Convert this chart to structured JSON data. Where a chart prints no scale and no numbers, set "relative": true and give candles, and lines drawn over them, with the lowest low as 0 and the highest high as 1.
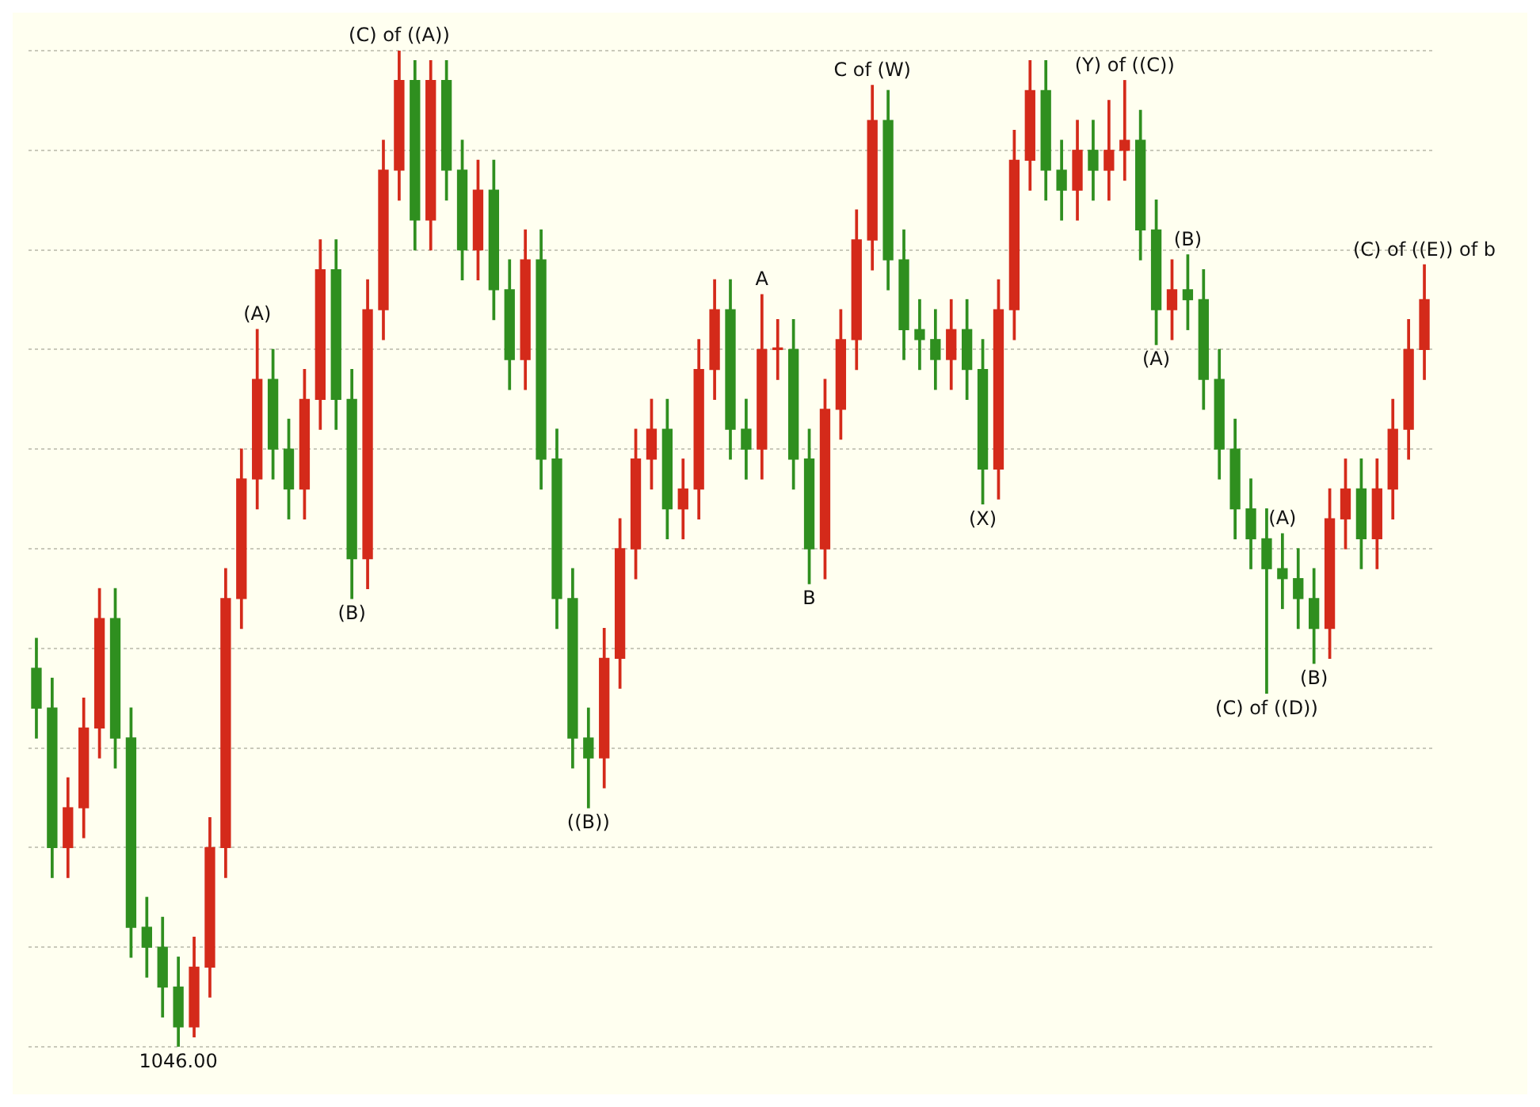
{
  "chart_data": {
    "type": "candlestick",
    "relative": true,
    "grid": "y",
    "colors": [
      "#2f8f1f",
      "#2f8f1f",
      "#d42a1a",
      "#d42a1a",
      "#d42a1a",
      "#2f8f1f",
      "#2f8f1f",
      "#2f8f1f",
      "#2f8f1f",
      "#2f8f1f",
      "#d42a1a",
      "#d42a1a",
      "#d42a1a",
      "#d42a1a",
      "#d42a1a",
      "#2f8f1f",
      "#2f8f1f",
      "#d42a1a",
      "#d42a1a",
      "#2f8f1f",
      "#2f8f1f",
      "#d42a1a",
      "#d42a1a",
      "#d42a1a",
      "#2f8f1f",
      "#d42a1a",
      "#2f8f1f",
      "#2f8f1f",
      "#d42a1a",
      "#2f8f1f",
      "#2f8f1f",
      "#d42a1a",
      "#2f8f1f",
      "#2f8f1f",
      "#2f8f1f",
      "#2f8f1f",
      "#d42a1a",
      "#d42a1a",
      "#d42a1a",
      "#d42a1a",
      "#2f8f1f",
      "#d42a1a",
      "#d42a1a",
      "#d42a1a",
      "#2f8f1f",
      "#2f8f1f",
      "#d42a1a",
      "#d42a1a",
      "#2f8f1f",
      "#2f8f1f",
      "#d42a1a",
      "#d42a1a",
      "#d42a1a",
      "#d42a1a",
      "#2f8f1f",
      "#2f8f1f",
      "#2f8f1f",
      "#2f8f1f",
      "#d42a1a",
      "#2f8f1f",
      "#2f8f1f",
      "#d42a1a",
      "#d42a1a",
      "#d42a1a",
      "#2f8f1f",
      "#2f8f1f",
      "#d42a1a",
      "#2f8f1f",
      "#d42a1a",
      "#d42a1a",
      "#2f8f1f",
      "#2f8f1f",
      "#d42a1a",
      "#2f8f1f",
      "#2f8f1f",
      "#2f8f1f",
      "#2f8f1f",
      "#2f8f1f",
      "#2f8f1f",
      "#2f8f1f",
      "#2f8f1f",
      "#2f8f1f",
      "#d42a1a",
      "#d42a1a",
      "#2f8f1f",
      "#d42a1a",
      "#d42a1a",
      "#d42a1a",
      "#d42a1a"
    ],
    "categories": [
      null,
      null,
      null,
      null,
      null,
      null,
      null,
      null,
      null,
      null,
      null,
      null,
      null,
      null,
      null,
      null,
      null,
      null,
      null,
      null,
      null,
      null,
      null,
      null,
      null,
      null,
      null,
      null,
      null,
      null,
      null,
      null,
      null,
      null,
      null,
      null,
      null,
      null,
      null,
      null,
      null,
      null,
      null,
      null,
      null,
      null,
      null,
      null,
      null,
      null,
      null,
      null,
      null,
      null,
      null,
      null,
      null,
      null,
      null,
      null,
      null,
      null,
      null,
      null,
      null,
      null,
      null,
      null,
      null,
      null,
      null,
      null,
      null,
      null,
      null,
      null,
      null,
      null,
      null,
      null,
      null,
      null,
      null,
      null,
      null,
      null,
      null,
      null,
      null
    ],
    "ohlc": [
      [
        0.38,
        0.41,
        0.31,
        0.34
      ],
      [
        0.34,
        0.37,
        0.17,
        0.2
      ],
      [
        0.2,
        0.27,
        0.17,
        0.24
      ],
      [
        0.24,
        0.35,
        0.21,
        0.32
      ],
      [
        0.32,
        0.46,
        0.29,
        0.43
      ],
      [
        0.43,
        0.46,
        0.28,
        0.31
      ],
      [
        0.31,
        0.34,
        0.09,
        0.12
      ],
      [
        0.12,
        0.15,
        0.07,
        0.1
      ],
      [
        0.1,
        0.13,
        0.03,
        0.06
      ],
      [
        0.06,
        0.09,
        0,
        0.02
      ],
      [
        0.02,
        0.11,
        0.01,
        0.08
      ],
      [
        0.08,
        0.23,
        0.05,
        0.2
      ],
      [
        0.2,
        0.48,
        0.17,
        0.45
      ],
      [
        0.45,
        0.6,
        0.42,
        0.57
      ],
      [
        0.57,
        0.72,
        0.54,
        0.67
      ],
      [
        0.67,
        0.7,
        0.57,
        0.6
      ],
      [
        0.6,
        0.63,
        0.53,
        0.56
      ],
      [
        0.56,
        0.68,
        0.53,
        0.65
      ],
      [
        0.65,
        0.81,
        0.62,
        0.78
      ],
      [
        0.78,
        0.81,
        0.62,
        0.65
      ],
      [
        0.65,
        0.68,
        0.45,
        0.49
      ],
      [
        0.49,
        0.77,
        0.46,
        0.74
      ],
      [
        0.74,
        0.91,
        0.71,
        0.88
      ],
      [
        0.88,
        1,
        0.85,
        0.97
      ],
      [
        0.97,
        0.99,
        0.8,
        0.83
      ],
      [
        0.83,
        0.99,
        0.8,
        0.97
      ],
      [
        0.97,
        0.99,
        0.85,
        0.88
      ],
      [
        0.88,
        0.91,
        0.77,
        0.8
      ],
      [
        0.8,
        0.89,
        0.77,
        0.86
      ],
      [
        0.86,
        0.89,
        0.73,
        0.76
      ],
      [
        0.76,
        0.79,
        0.66,
        0.69
      ],
      [
        0.69,
        0.82,
        0.66,
        0.79
      ],
      [
        0.79,
        0.82,
        0.56,
        0.59
      ],
      [
        0.59,
        0.62,
        0.42,
        0.45
      ],
      [
        0.45,
        0.48,
        0.28,
        0.31
      ],
      [
        0.31,
        0.34,
        0.24,
        0.29
      ],
      [
        0.29,
        0.42,
        0.26,
        0.39
      ],
      [
        0.39,
        0.53,
        0.36,
        0.5
      ],
      [
        0.5,
        0.62,
        0.47,
        0.59
      ],
      [
        0.59,
        0.65,
        0.56,
        0.62
      ],
      [
        0.62,
        0.65,
        0.51,
        0.54
      ],
      [
        0.54,
        0.59,
        0.51,
        0.56
      ],
      [
        0.56,
        0.71,
        0.53,
        0.68
      ],
      [
        0.68,
        0.77,
        0.65,
        0.74
      ],
      [
        0.74,
        0.77,
        0.59,
        0.62
      ],
      [
        0.62,
        0.65,
        0.57,
        0.6
      ],
      [
        0.6,
        0.755,
        0.57,
        0.7
      ],
      [
        0.7,
        0.73,
        0.67,
        0.7
      ],
      [
        0.7,
        0.73,
        0.56,
        0.59
      ],
      [
        0.59,
        0.62,
        0.465,
        0.5
      ],
      [
        0.5,
        0.67,
        0.47,
        0.64
      ],
      [
        0.64,
        0.74,
        0.61,
        0.71
      ],
      [
        0.71,
        0.84,
        0.68,
        0.81
      ],
      [
        0.81,
        0.965,
        0.78,
        0.93
      ],
      [
        0.93,
        0.96,
        0.76,
        0.79
      ],
      [
        0.79,
        0.82,
        0.69,
        0.72
      ],
      [
        0.72,
        0.75,
        0.68,
        0.71
      ],
      [
        0.71,
        0.74,
        0.66,
        0.69
      ],
      [
        0.69,
        0.75,
        0.66,
        0.72
      ],
      [
        0.72,
        0.75,
        0.65,
        0.68
      ],
      [
        0.68,
        0.71,
        0.545,
        0.58
      ],
      [
        0.58,
        0.77,
        0.55,
        0.74
      ],
      [
        0.74,
        0.92,
        0.71,
        0.89
      ],
      [
        0.89,
        0.99,
        0.86,
        0.96
      ],
      [
        0.96,
        0.99,
        0.85,
        0.88
      ],
      [
        0.88,
        0.91,
        0.83,
        0.86
      ],
      [
        0.86,
        0.93,
        0.83,
        0.9
      ],
      [
        0.9,
        0.93,
        0.85,
        0.88
      ],
      [
        0.88,
        0.95,
        0.85,
        0.9
      ],
      [
        0.9,
        0.97,
        0.87,
        0.91
      ],
      [
        0.91,
        0.94,
        0.79,
        0.82
      ],
      [
        0.82,
        0.85,
        0.705,
        0.74
      ],
      [
        0.74,
        0.79,
        0.71,
        0.76
      ],
      [
        0.76,
        0.795,
        0.72,
        0.75
      ],
      [
        0.75,
        0.78,
        0.64,
        0.67
      ],
      [
        0.67,
        0.7,
        0.57,
        0.6
      ],
      [
        0.6,
        0.63,
        0.51,
        0.54
      ],
      [
        0.54,
        0.57,
        0.48,
        0.51
      ],
      [
        0.51,
        0.54,
        0.355,
        0.48
      ],
      [
        0.48,
        0.515,
        0.44,
        0.47
      ],
      [
        0.47,
        0.5,
        0.42,
        0.45
      ],
      [
        0.45,
        0.48,
        0.385,
        0.42
      ],
      [
        0.42,
        0.56,
        0.39,
        0.53
      ],
      [
        0.53,
        0.59,
        0.5,
        0.56
      ],
      [
        0.56,
        0.59,
        0.48,
        0.51
      ],
      [
        0.51,
        0.59,
        0.48,
        0.56
      ],
      [
        0.56,
        0.65,
        0.53,
        0.62
      ],
      [
        0.62,
        0.73,
        0.59,
        0.7
      ],
      [
        0.7,
        0.785,
        0.67,
        0.75
      ]
    ],
    "annotations": [
      {
        "text": "(C) of ((A))",
        "y": 1
      },
      {
        "text": "(A)",
        "y": 0.72
      },
      {
        "text": "(B)",
        "y": 0.45
      },
      {
        "text": "((B))",
        "y": 0.24
      },
      {
        "text": "A",
        "y": 0.755
      },
      {
        "text": "B",
        "y": 0.465
      },
      {
        "text": "C of (W)",
        "y": 0.965
      },
      {
        "text": "(X)",
        "y": 0.545
      },
      {
        "text": "(Y) of ((C))",
        "y": 0.97
      },
      {
        "text": "(B)",
        "y": 0.795
      },
      {
        "text": "(A)",
        "y": 0.705
      },
      {
        "text": "(C) of ((D))",
        "y": 0.355
      },
      {
        "text": "(A)",
        "y": 0.515
      },
      {
        "text": "(B)",
        "y": 0.385
      },
      {
        "text": "(C) of ((E)) of b",
        "y": 0.785
      },
      {
        "text": "1046.00",
        "y": 0
      }
    ]
  }
}
